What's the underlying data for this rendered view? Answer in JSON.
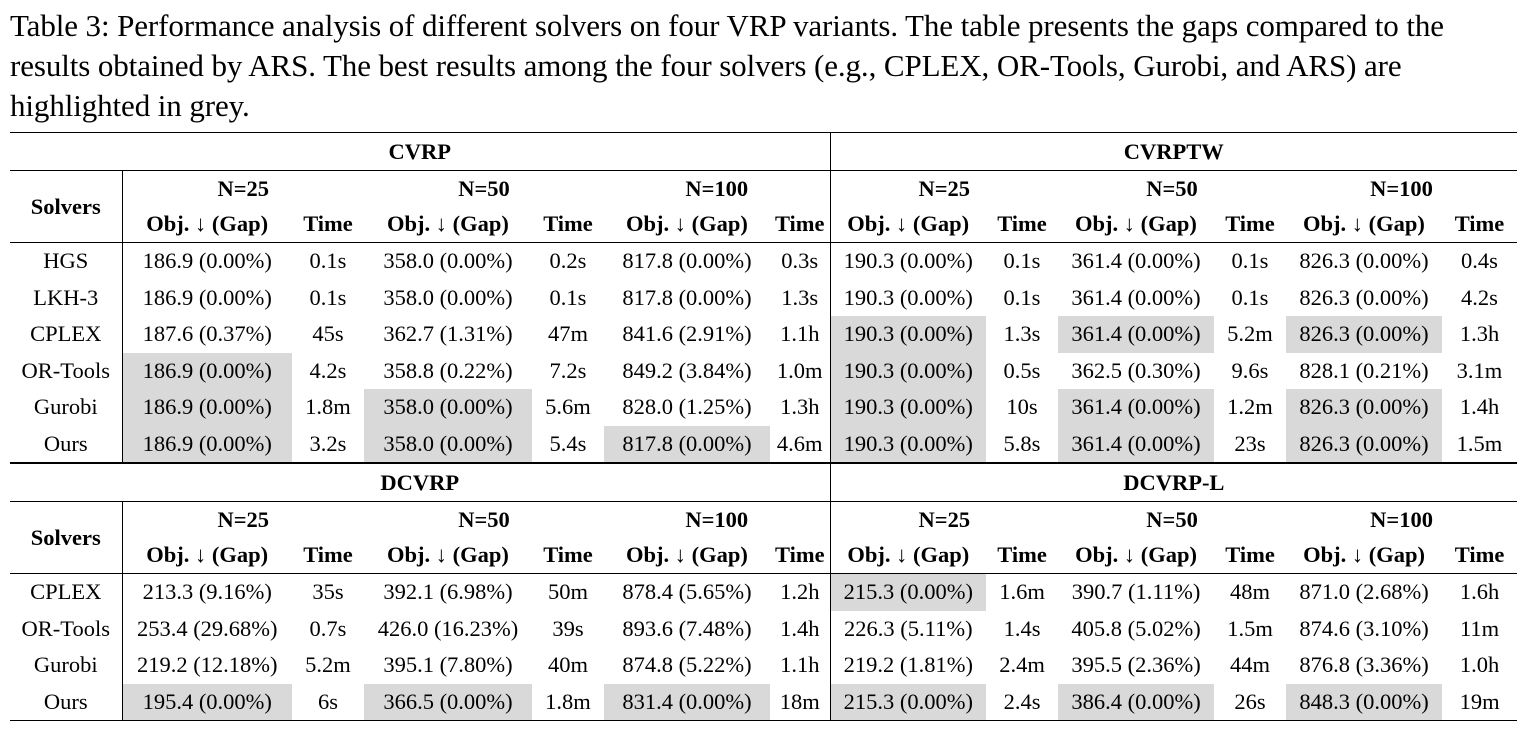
{
  "caption": "Table 3: Performance analysis of different solvers on four VRP variants. The table presents the gaps compared to the results obtained by ARS. The best results among the four solvers (e.g., CPLEX, OR-Tools, Gurobi, and ARS) are highlighted in grey.",
  "headers": {
    "solvers": "Solvers",
    "sizes": [
      "N=25",
      "N=50",
      "N=100"
    ],
    "obj": "Obj. ↓ (Gap)",
    "time": "Time"
  },
  "highlight_color": "#d9d9d9",
  "top": {
    "left_variant": "CVRP",
    "right_variant": "CVRPTW",
    "rows": [
      {
        "solver": "HGS",
        "cells": [
          [
            "186.9 (0.00%)",
            "0.1s"
          ],
          [
            "358.0 (0.00%)",
            "0.2s"
          ],
          [
            "817.8 (0.00%)",
            "0.3s"
          ],
          [
            "190.3 (0.00%)",
            "0.1s"
          ],
          [
            "361.4 (0.00%)",
            "0.1s"
          ],
          [
            "826.3 (0.00%)",
            "0.4s"
          ]
        ],
        "hl": [
          false,
          false,
          false,
          false,
          false,
          false
        ]
      },
      {
        "solver": "LKH-3",
        "cells": [
          [
            "186.9 (0.00%)",
            "0.1s"
          ],
          [
            "358.0 (0.00%)",
            "0.1s"
          ],
          [
            "817.8 (0.00%)",
            "1.3s"
          ],
          [
            "190.3 (0.00%)",
            "0.1s"
          ],
          [
            "361.4 (0.00%)",
            "0.1s"
          ],
          [
            "826.3 (0.00%)",
            "4.2s"
          ]
        ],
        "hl": [
          false,
          false,
          false,
          false,
          false,
          false
        ]
      },
      {
        "solver": "CPLEX",
        "cells": [
          [
            "187.6 (0.37%)",
            "45s"
          ],
          [
            "362.7 (1.31%)",
            "47m"
          ],
          [
            "841.6 (2.91%)",
            "1.1h"
          ],
          [
            "190.3 (0.00%)",
            "1.3s"
          ],
          [
            "361.4 (0.00%)",
            "5.2m"
          ],
          [
            "826.3 (0.00%)",
            "1.3h"
          ]
        ],
        "hl": [
          false,
          false,
          false,
          true,
          true,
          true
        ]
      },
      {
        "solver": "OR-Tools",
        "cells": [
          [
            "186.9 (0.00%)",
            "4.2s"
          ],
          [
            "358.8 (0.22%)",
            "7.2s"
          ],
          [
            "849.2 (3.84%)",
            "1.0m"
          ],
          [
            "190.3 (0.00%)",
            "0.5s"
          ],
          [
            "362.5 (0.30%)",
            "9.6s"
          ],
          [
            "828.1 (0.21%)",
            "3.1m"
          ]
        ],
        "hl": [
          true,
          false,
          false,
          true,
          false,
          false
        ]
      },
      {
        "solver": "Gurobi",
        "cells": [
          [
            "186.9 (0.00%)",
            "1.8m"
          ],
          [
            "358.0 (0.00%)",
            "5.6m"
          ],
          [
            "828.0 (1.25%)",
            "1.3h"
          ],
          [
            "190.3 (0.00%)",
            "10s"
          ],
          [
            "361.4 (0.00%)",
            "1.2m"
          ],
          [
            "826.3 (0.00%)",
            "1.4h"
          ]
        ],
        "hl": [
          true,
          true,
          false,
          true,
          true,
          true
        ]
      },
      {
        "solver": "Ours",
        "cells": [
          [
            "186.9 (0.00%)",
            "3.2s"
          ],
          [
            "358.0 (0.00%)",
            "5.4s"
          ],
          [
            "817.8 (0.00%)",
            "4.6m"
          ],
          [
            "190.3 (0.00%)",
            "5.8s"
          ],
          [
            "361.4 (0.00%)",
            "23s"
          ],
          [
            "826.3 (0.00%)",
            "1.5m"
          ]
        ],
        "hl": [
          true,
          true,
          true,
          true,
          true,
          true
        ]
      }
    ]
  },
  "bottom": {
    "left_variant": "DCVRP",
    "right_variant": "DCVRP-L",
    "rows": [
      {
        "solver": "CPLEX",
        "cells": [
          [
            "213.3 (9.16%)",
            "35s"
          ],
          [
            "392.1 (6.98%)",
            "50m"
          ],
          [
            "878.4 (5.65%)",
            "1.2h"
          ],
          [
            "215.3 (0.00%)",
            "1.6m"
          ],
          [
            "390.7 (1.11%)",
            "48m"
          ],
          [
            "871.0 (2.68%)",
            "1.6h"
          ]
        ],
        "hl": [
          false,
          false,
          false,
          true,
          false,
          false
        ]
      },
      {
        "solver": "OR-Tools",
        "cells": [
          [
            "253.4 (29.68%)",
            "0.7s"
          ],
          [
            "426.0 (16.23%)",
            "39s"
          ],
          [
            "893.6 (7.48%)",
            "1.4h"
          ],
          [
            "226.3 (5.11%)",
            "1.4s"
          ],
          [
            "405.8 (5.02%)",
            "1.5m"
          ],
          [
            "874.6 (3.10%)",
            "11m"
          ]
        ],
        "hl": [
          false,
          false,
          false,
          false,
          false,
          false
        ]
      },
      {
        "solver": "Gurobi",
        "cells": [
          [
            "219.2 (12.18%)",
            "5.2m"
          ],
          [
            "395.1 (7.80%)",
            "40m"
          ],
          [
            "874.8 (5.22%)",
            "1.1h"
          ],
          [
            "219.2 (1.81%)",
            "2.4m"
          ],
          [
            "395.5 (2.36%)",
            "44m"
          ],
          [
            "876.8 (3.36%)",
            "1.0h"
          ]
        ],
        "hl": [
          false,
          false,
          false,
          false,
          false,
          false
        ]
      },
      {
        "solver": "Ours",
        "cells": [
          [
            "195.4 (0.00%)",
            "6s"
          ],
          [
            "366.5 (0.00%)",
            "1.8m"
          ],
          [
            "831.4 (0.00%)",
            "18m"
          ],
          [
            "215.3 (0.00%)",
            "2.4s"
          ],
          [
            "386.4 (0.00%)",
            "26s"
          ],
          [
            "848.3 (0.00%)",
            "19m"
          ]
        ],
        "hl": [
          true,
          true,
          true,
          true,
          true,
          true
        ]
      }
    ]
  }
}
